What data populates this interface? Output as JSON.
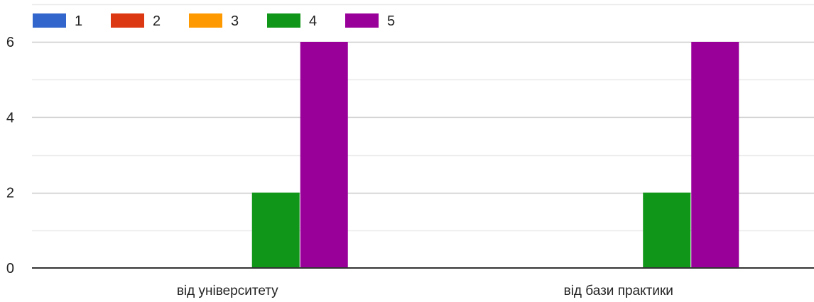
{
  "chart_data": {
    "type": "bar",
    "categories": [
      "від університету",
      "від бази практики"
    ],
    "series": [
      {
        "name": "1",
        "color": "#3366cc",
        "values": [
          0,
          0
        ]
      },
      {
        "name": "2",
        "color": "#dc3912",
        "values": [
          0,
          0
        ]
      },
      {
        "name": "3",
        "color": "#ff9900",
        "values": [
          0,
          0
        ]
      },
      {
        "name": "4",
        "color": "#109618",
        "values": [
          2,
          2
        ]
      },
      {
        "name": "5",
        "color": "#990099",
        "values": [
          6,
          6
        ]
      }
    ],
    "y_ticks": [
      "0",
      "2",
      "4",
      "6"
    ],
    "ylim": [
      0,
      6
    ],
    "grid": true,
    "legend_position": "top-left",
    "title": "",
    "xlabel": "",
    "ylabel": ""
  }
}
